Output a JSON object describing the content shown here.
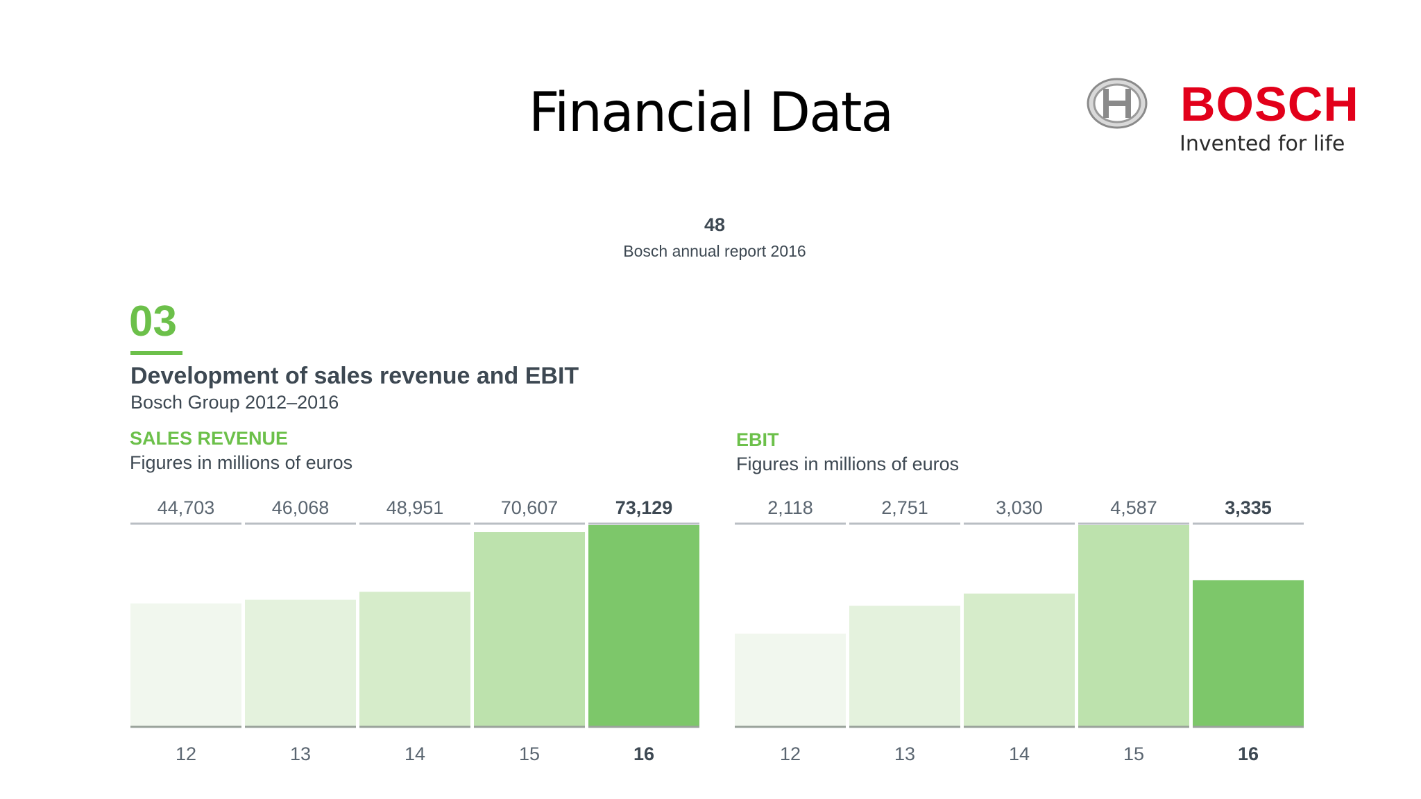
{
  "slide": {
    "title": "Financial Data",
    "logo": {
      "brand": "BOSCH",
      "tagline": "Invented for life"
    }
  },
  "report": {
    "page_number": "48",
    "name": "Bosch annual report 2016",
    "figure_number": "03",
    "figure_title": "Development of sales revenue and EBIT",
    "figure_subtitle": "Bosch Group 2012–2016"
  },
  "colors": {
    "accent": "#6cc04a",
    "text": "#3d4852",
    "bar_shades": [
      "#f1f7ee",
      "#e4f2dd",
      "#d6ecca",
      "#bde2ad",
      "#7dc76a"
    ]
  },
  "chart_data": [
    {
      "type": "bar",
      "label": "SALES REVENUE",
      "unit_note": "Figures in millions of euros",
      "categories": [
        "12",
        "13",
        "14",
        "15",
        "16"
      ],
      "values": [
        44703,
        46068,
        48951,
        70607,
        73129
      ],
      "value_labels": [
        "44,703",
        "46,068",
        "48,951",
        "70,607",
        "73,129"
      ],
      "highlight_index": 4
    },
    {
      "type": "bar",
      "label": "EBIT",
      "unit_note": "Figures in millions of euros",
      "categories": [
        "12",
        "13",
        "14",
        "15",
        "16"
      ],
      "values": [
        2118,
        2751,
        3030,
        4587,
        3335
      ],
      "value_labels": [
        "2,118",
        "2,751",
        "3,030",
        "4,587",
        "3,335"
      ],
      "highlight_index": 4
    }
  ]
}
